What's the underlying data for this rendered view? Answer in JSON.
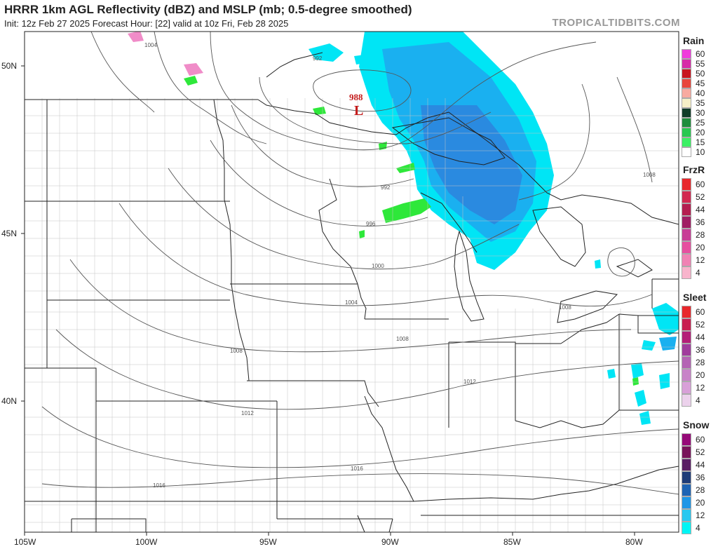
{
  "header": {
    "title": "HRRR 1km AGL Reflectivity (dBZ) and MSLP (mb; 0.5-degree smoothed)",
    "subtitle": "Init: 12z Feb 27 2025   Forecast Hour: [22]   valid at 10z Fri, Feb 28 2025",
    "site": "TROPICALTIDBITS.COM"
  },
  "map": {
    "lat_labels": [
      "50N",
      "45N",
      "40N"
    ],
    "lon_labels": [
      "105W",
      "100W",
      "95W",
      "90W",
      "85W",
      "80W"
    ],
    "low_center": {
      "symbol": "L",
      "value": "988"
    },
    "isobar_labels": [
      "1004",
      "992",
      "992",
      "996",
      "1000",
      "1004",
      "1008",
      "1008",
      "1008",
      "1008",
      "1012",
      "1012",
      "1016",
      "1016"
    ],
    "colors": {
      "land_lines": "#9a9a9a",
      "isobars": "#555555",
      "snow_light": "#00e5f5",
      "snow_mid": "#1ab0f0",
      "snow_dark": "#2a8ae0",
      "rain_green": "#2ee83a",
      "mix_pink": "#f08cc8",
      "low_red": "#c41c1c"
    }
  },
  "legends": [
    {
      "title": "Rain",
      "items": [
        {
          "label": "60",
          "color": "#f03cdc"
        },
        {
          "label": "55",
          "color": "#d72aa8"
        },
        {
          "label": "50",
          "color": "#c8141e"
        },
        {
          "label": "45",
          "color": "#e8463c"
        },
        {
          "label": "40",
          "color": "#f8aaa0"
        },
        {
          "label": "35",
          "color": "#f6f0c8"
        },
        {
          "label": "30",
          "color": "#103c28"
        },
        {
          "label": "25",
          "color": "#1e8c3c"
        },
        {
          "label": "20",
          "color": "#28c850"
        },
        {
          "label": "15",
          "color": "#3cf064"
        },
        {
          "label": "10",
          "color": "#ffffff"
        }
      ]
    },
    {
      "title": "FrzR",
      "items": [
        {
          "label": "60",
          "color": "#e8282c"
        },
        {
          "label": "52",
          "color": "#d22850"
        },
        {
          "label": "44",
          "color": "#b41e50"
        },
        {
          "label": "36",
          "color": "#a01e64"
        },
        {
          "label": "28",
          "color": "#c83c96"
        },
        {
          "label": "20",
          "color": "#e650a0"
        },
        {
          "label": "12",
          "color": "#f082b4"
        },
        {
          "label": "4",
          "color": "#f8b4cc"
        }
      ]
    },
    {
      "title": "Sleet",
      "items": [
        {
          "label": "60",
          "color": "#e8282c"
        },
        {
          "label": "52",
          "color": "#c81e50"
        },
        {
          "label": "44",
          "color": "#b41e78"
        },
        {
          "label": "36",
          "color": "#a03c9c"
        },
        {
          "label": "28",
          "color": "#b464b4"
        },
        {
          "label": "20",
          "color": "#c882c8"
        },
        {
          "label": "12",
          "color": "#d8a0d8"
        },
        {
          "label": "4",
          "color": "#ecd2ec"
        }
      ]
    },
    {
      "title": "Snow",
      "items": [
        {
          "label": "60",
          "color": "#960a78"
        },
        {
          "label": "52",
          "color": "#78145a"
        },
        {
          "label": "44",
          "color": "#5a1e64"
        },
        {
          "label": "36",
          "color": "#1e3c78"
        },
        {
          "label": "28",
          "color": "#1e64b4"
        },
        {
          "label": "20",
          "color": "#1e96e6"
        },
        {
          "label": "12",
          "color": "#28c8f0"
        },
        {
          "label": "4",
          "color": "#00f5f5"
        }
      ]
    }
  ]
}
